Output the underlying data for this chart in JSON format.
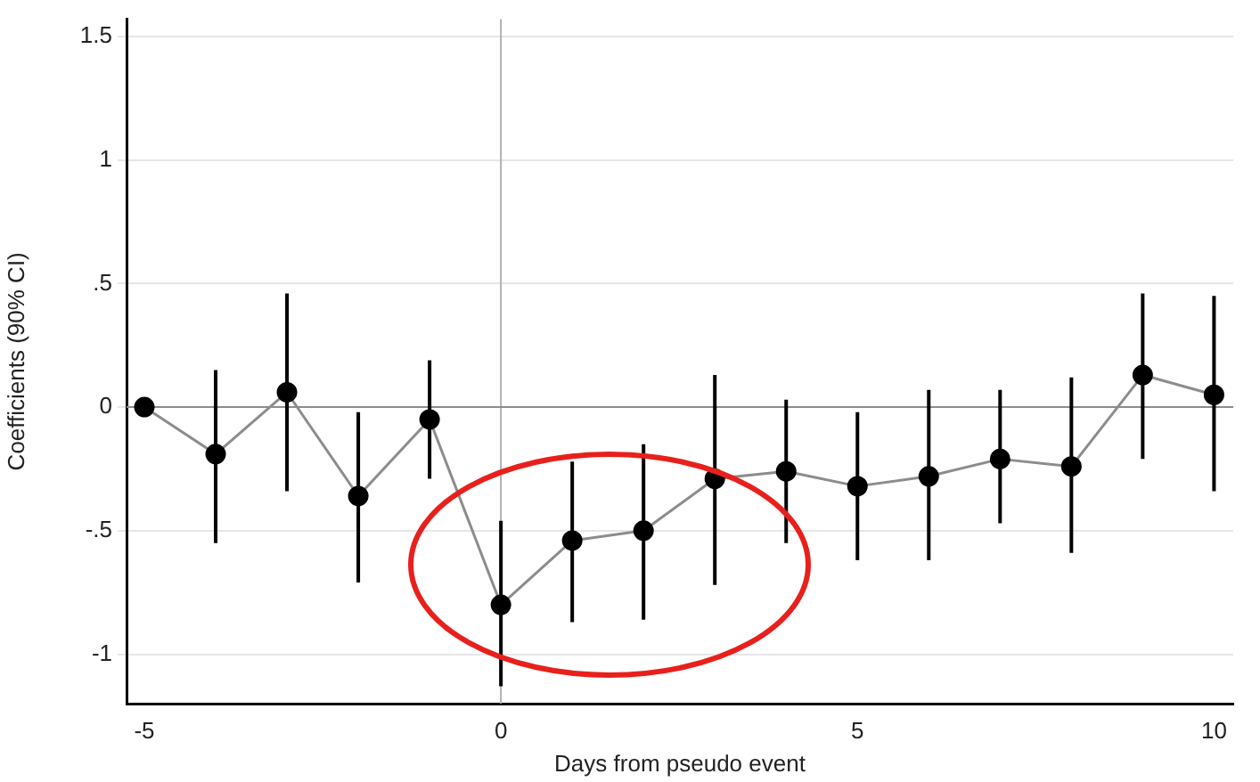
{
  "chart_data": {
    "type": "line",
    "xlabel": "Days from pseudo event",
    "ylabel": "Coefficients (90% CI)",
    "x": [
      -5,
      -4,
      -3,
      -2,
      -1,
      0,
      1,
      2,
      3,
      4,
      5,
      6,
      7,
      8,
      9,
      10
    ],
    "series": [
      {
        "color": "#000000",
        "values": [
          0,
          -0.19,
          0.06,
          -0.36,
          -0.05,
          -0.8,
          -0.54,
          -0.5,
          -0.29,
          -0.26,
          -0.32,
          -0.28,
          -0.21,
          -0.24,
          0.13,
          0.05
        ],
        "errors": [
          null,
          [
            -0.55,
            0.15
          ],
          [
            -0.34,
            0.46
          ],
          [
            -0.71,
            -0.02
          ],
          [
            -0.29,
            0.19
          ],
          [
            -1.13,
            -0.46
          ],
          [
            -0.87,
            -0.22
          ],
          [
            -0.86,
            -0.15
          ],
          [
            -0.72,
            0.13
          ],
          [
            -0.55,
            0.03
          ],
          [
            -0.62,
            -0.02
          ],
          [
            -0.62,
            0.07
          ],
          [
            -0.47,
            0.07
          ],
          [
            -0.59,
            0.12
          ],
          [
            -0.21,
            0.46
          ],
          [
            -0.34,
            0.45
          ]
        ]
      }
    ],
    "xlim": [
      -5.25,
      10.27
    ],
    "xticks": [
      {
        "value": -5,
        "label": "-5"
      },
      0,
      5,
      10
    ],
    "ylim": [
      -1.2,
      1.57
    ],
    "yticks": [
      {
        "value": -1,
        "label": "-1"
      },
      {
        "value": -0.5,
        "label": "-.5"
      },
      0,
      {
        "value": 0.5,
        "label": ".5"
      },
      1,
      1.5
    ],
    "grid": "y",
    "marker": "circle",
    "line_style": "solid",
    "ref_lines": [
      {
        "axis": "x",
        "value": 0,
        "color": "#b0b0b0"
      },
      {
        "axis": "y",
        "value": 0,
        "color": "#8c8c8c"
      }
    ]
  }
}
